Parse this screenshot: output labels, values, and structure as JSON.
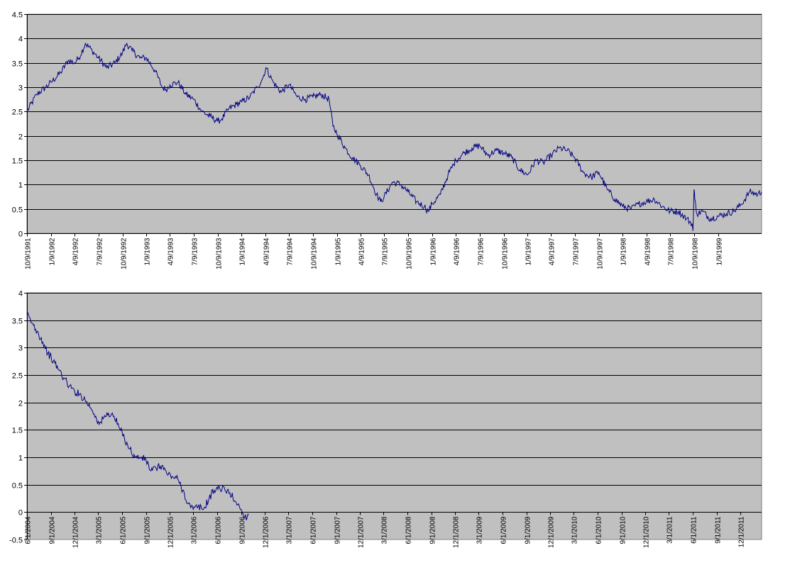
{
  "chart_data": [
    {
      "type": "line",
      "title": "",
      "xlabel": "",
      "ylabel": "",
      "ylim": [
        0,
        4.5
      ],
      "yticks": [
        0,
        0.5,
        1,
        1.5,
        2,
        2.5,
        3,
        3.5,
        4,
        4.5
      ],
      "ytick_labels": [
        "0",
        "0.5",
        "1",
        "1.5",
        "2",
        "2.5",
        "3",
        "3.5",
        "4",
        "4.5"
      ],
      "xlim": [
        "1991-10-09",
        "1999-06-25"
      ],
      "xtick_labels": [
        "10/9/1991",
        "1/9/1992",
        "4/9/1992",
        "7/9/1992",
        "10/9/1992",
        "1/9/1993",
        "4/9/1993",
        "7/9/1993",
        "10/9/1993",
        "1/9/1994",
        "4/9/1994",
        "7/9/1994",
        "10/9/1994",
        "1/9/1995",
        "4/9/1995",
        "7/9/1995",
        "10/9/1995",
        "1/9/1996",
        "4/9/1996",
        "7/9/1996",
        "10/9/1996",
        "1/9/1997",
        "4/9/1997",
        "7/9/1997",
        "10/9/1997",
        "1/9/1998",
        "4/9/1998",
        "7/9/1998",
        "10/9/1998",
        "1/9/1999"
      ],
      "grid": true,
      "legend": "none",
      "series_color": "#000080",
      "series": [
        {
          "x": [
            "1991-10-09",
            "1991-11-15",
            "1991-12-20",
            "1992-01-09",
            "1992-02-15",
            "1992-03-15",
            "1992-04-09",
            "1992-04-25",
            "1992-05-20",
            "1992-06-15",
            "1992-07-09",
            "1992-08-10",
            "1992-09-10",
            "1992-10-09",
            "1992-10-25",
            "1992-11-15",
            "1992-12-15",
            "1993-01-09",
            "1993-02-10",
            "1993-03-10",
            "1993-03-25",
            "1993-04-09",
            "1993-05-10",
            "1993-06-10",
            "1993-07-09",
            "1993-08-10",
            "1993-09-10",
            "1993-10-09",
            "1993-10-25",
            "1993-11-20",
            "1993-12-20",
            "1994-01-09",
            "1994-02-10",
            "1994-03-10",
            "1994-04-01",
            "1994-04-12",
            "1994-05-10",
            "1994-06-10",
            "1994-07-09",
            "1994-08-10",
            "1994-09-10",
            "1994-10-09",
            "1994-11-10",
            "1994-12-10",
            "1994-12-25",
            "1995-01-09",
            "1995-02-10",
            "1995-03-10",
            "1995-04-09",
            "1995-05-10",
            "1995-06-10",
            "1995-06-25",
            "1995-07-09",
            "1995-08-10",
            "1995-09-10",
            "1995-10-09",
            "1995-11-10",
            "1995-12-10",
            "1995-12-25",
            "1996-01-09",
            "1996-02-10",
            "1996-03-10",
            "1996-04-09",
            "1996-05-10",
            "1996-06-10",
            "1996-07-09",
            "1996-08-10",
            "1996-09-10",
            "1996-10-09",
            "1996-11-10",
            "1996-12-10",
            "1997-01-09",
            "1997-02-10",
            "1997-03-10",
            "1997-04-09",
            "1997-05-10",
            "1997-06-10",
            "1997-07-09",
            "1997-08-10",
            "1997-09-10",
            "1997-10-09",
            "1997-11-10",
            "1997-12-10",
            "1998-01-09",
            "1998-02-10",
            "1998-03-10",
            "1998-04-09",
            "1998-05-10",
            "1998-06-10",
            "1998-07-09",
            "1998-08-10",
            "1998-09-10",
            "1998-10-01",
            "1998-10-05",
            "1998-10-09",
            "1998-10-12",
            "1998-10-20",
            "1998-11-10",
            "1998-12-10",
            "1999-01-09",
            "1999-02-10",
            "1999-03-10",
            "1999-04-09",
            "1999-05-10",
            "1999-06-10",
            "1999-06-25"
          ],
          "y": [
            2.5,
            2.85,
            3.0,
            3.1,
            3.3,
            3.55,
            3.5,
            3.6,
            3.9,
            3.75,
            3.6,
            3.4,
            3.5,
            3.7,
            3.9,
            3.75,
            3.6,
            3.6,
            3.35,
            3.0,
            2.95,
            3.05,
            3.1,
            2.85,
            2.75,
            2.5,
            2.4,
            2.3,
            2.35,
            2.55,
            2.65,
            2.7,
            2.8,
            3.0,
            3.2,
            3.4,
            3.1,
            2.9,
            3.05,
            2.8,
            2.75,
            2.8,
            2.85,
            2.75,
            2.2,
            2.05,
            1.75,
            1.55,
            1.4,
            1.2,
            0.8,
            0.65,
            0.75,
            1.05,
            1.0,
            0.85,
            0.65,
            0.55,
            0.45,
            0.6,
            0.8,
            1.2,
            1.5,
            1.65,
            1.75,
            1.8,
            1.6,
            1.7,
            1.65,
            1.55,
            1.3,
            1.2,
            1.5,
            1.45,
            1.6,
            1.75,
            1.7,
            1.55,
            1.25,
            1.15,
            1.25,
            0.9,
            0.7,
            0.55,
            0.5,
            0.6,
            0.65,
            0.7,
            0.55,
            0.45,
            0.45,
            0.3,
            0.2,
            0.05,
            0.9,
            0.7,
            0.4,
            0.45,
            0.3,
            0.35,
            0.4,
            0.45,
            0.6,
            0.85,
            0.8,
            0.85
          ]
        }
      ]
    },
    {
      "type": "line",
      "title": "",
      "xlabel": "",
      "ylabel": "",
      "ylim": [
        -0.5,
        4
      ],
      "yticks": [
        -0.5,
        0,
        0.5,
        1,
        1.5,
        2,
        2.5,
        3,
        3.5,
        4
      ],
      "ytick_labels": [
        "-0.5",
        "0",
        "0.5",
        "1",
        "1.5",
        "2",
        "2.5",
        "3",
        "3.5",
        "4"
      ],
      "xlim": [
        "2004-06-01",
        "2012-02-20"
      ],
      "xtick_labels": [
        "6/1/2004",
        "9/1/2004",
        "12/1/2004",
        "3/1/2005",
        "6/1/2005",
        "9/1/2005",
        "12/1/2005",
        "3/1/2006",
        "6/1/2006",
        "9/1/2006",
        "12/1/2006",
        "3/1/2007",
        "6/1/2007",
        "9/1/2007",
        "12/1/2007",
        "3/1/2008",
        "6/1/2008",
        "9/1/2008",
        "12/1/2008",
        "3/1/2009",
        "6/1/2009",
        "9/1/2009",
        "12/1/2009",
        "3/1/2010",
        "6/1/2010",
        "9/1/2010",
        "12/1/2010",
        "3/1/2011",
        "6/1/2011",
        "9/1/2011",
        "12/1/2011"
      ],
      "grid": true,
      "legend": "none",
      "series_color": "#000080",
      "series": [
        {
          "x": [
            "2004-06-01",
            "2004-06-20",
            "2004-07-10",
            "2004-08-01",
            "2004-08-20",
            "2004-09-10",
            "2004-10-01",
            "2004-10-20",
            "2004-11-10",
            "2004-12-01",
            "2004-12-20",
            "2005-01-10",
            "2005-02-01",
            "2005-02-20",
            "2005-03-05",
            "2005-03-20",
            "2005-04-10",
            "2005-05-01",
            "2005-05-20",
            "2005-06-10",
            "2005-07-01",
            "2005-07-20",
            "2005-08-10",
            "2005-09-01",
            "2005-09-20",
            "2005-10-10",
            "2005-11-01",
            "2005-11-20",
            "2005-12-10",
            "2006-01-01",
            "2006-01-20",
            "2006-02-10",
            "2006-03-01",
            "2006-03-20",
            "2006-04-10",
            "2006-05-01",
            "2006-05-20",
            "2006-06-10",
            "2006-07-01",
            "2006-07-20",
            "2006-08-10",
            "2006-09-01",
            "2006-09-15",
            "2006-09-30"
          ],
          "y": [
            3.6,
            3.45,
            3.3,
            3.1,
            2.9,
            2.75,
            2.6,
            2.45,
            2.3,
            2.2,
            2.15,
            2.05,
            1.9,
            1.75,
            1.6,
            1.7,
            1.8,
            1.75,
            1.55,
            1.35,
            1.15,
            1.0,
            1.0,
            0.95,
            0.75,
            0.8,
            0.85,
            0.7,
            0.65,
            0.6,
            0.4,
            0.15,
            0.05,
            0.1,
            0.05,
            0.25,
            0.4,
            0.45,
            0.4,
            0.35,
            0.2,
            0.05,
            -0.1,
            -0.05
          ]
        }
      ]
    }
  ]
}
